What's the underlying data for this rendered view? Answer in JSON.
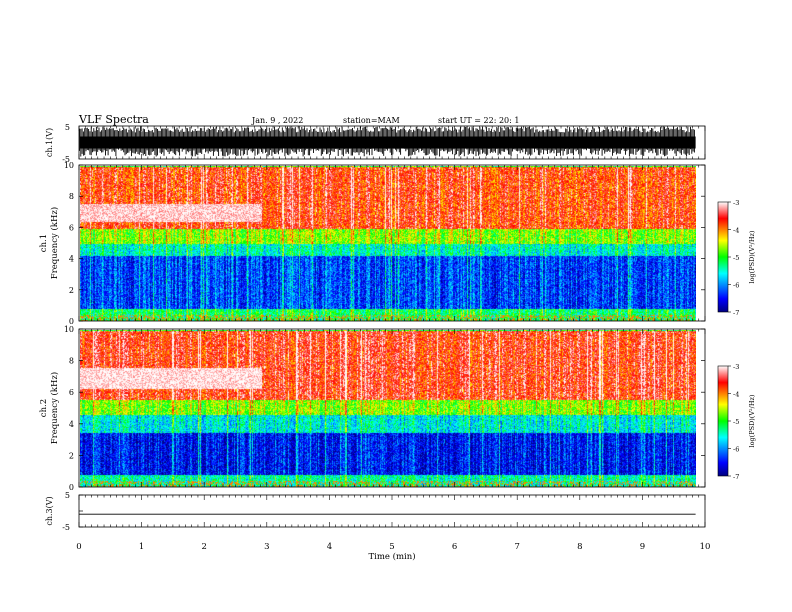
{
  "header": {
    "title": "VLF Spectra",
    "date": "Jan. 9 , 2022",
    "station": "station=MAM",
    "start": "start UT =  22: 20: 1"
  },
  "colorbar": {
    "label": "log(PSD)(V²/Hz)",
    "ticks": [
      "-3",
      "-4",
      "-5",
      "-6",
      "-7"
    ]
  },
  "chart_data": [
    {
      "type": "line",
      "name": "ch1-waveform",
      "ylabel": "ch.1(V)",
      "ylim": [
        -5,
        5
      ],
      "yticks": [
        "5",
        "-5"
      ],
      "xlim": [
        0,
        10
      ],
      "description_level": "dense black waveform spikes across full range"
    },
    {
      "type": "heatmap",
      "name": "ch1-spectrogram",
      "ylabel": "ch.1 Frequency (kHz)",
      "ylabel_lines": [
        "ch.1",
        "Frequency (kHz)"
      ],
      "ylim": [
        0,
        10
      ],
      "yticks": [
        "0",
        "2",
        "4",
        "6",
        "8",
        "10"
      ],
      "xlim": [
        0,
        9.85
      ],
      "clim": [
        -7,
        -3
      ],
      "colormap": [
        "#00007f",
        "#0000ff",
        "#00ffff",
        "#00ff00",
        "#ffff00",
        "#ff0000",
        "#ffffff"
      ],
      "band_structure_kHz": [
        {
          "from": 0,
          "to": 0.8,
          "level": -5.2
        },
        {
          "from": 0.8,
          "to": 4.2,
          "level": -6.3
        },
        {
          "from": 4.2,
          "to": 5.0,
          "level": -5.5
        },
        {
          "from": 5.0,
          "to": 6.0,
          "level": -4.7
        },
        {
          "from": 6.0,
          "to": 10,
          "level": -3.7
        }
      ],
      "feature": {
        "label": "",
        "x_range_min": [
          0,
          2.9
        ],
        "freq_kHz": [
          6.4,
          7.6
        ],
        "level": -3.1
      }
    },
    {
      "type": "heatmap",
      "name": "ch2-spectrogram",
      "ylabel": "ch.2 Frequency (kHz)",
      "ylabel_lines": [
        "ch.2",
        "Frequency (kHz)"
      ],
      "ylim": [
        0,
        10
      ],
      "yticks": [
        "0",
        "2",
        "4",
        "6",
        "8",
        "10"
      ],
      "xlim": [
        0,
        9.85
      ],
      "clim": [
        -7,
        -3
      ],
      "colormap": [
        "#00007f",
        "#0000ff",
        "#00ffff",
        "#00ff00",
        "#ffff00",
        "#ff0000",
        "#ffffff"
      ],
      "band_structure_kHz": [
        {
          "from": 0,
          "to": 0.8,
          "level": -5.4
        },
        {
          "from": 0.8,
          "to": 3.5,
          "level": -6.5
        },
        {
          "from": 3.5,
          "to": 4.6,
          "level": -5.6
        },
        {
          "from": 4.6,
          "to": 5.6,
          "level": -4.7
        },
        {
          "from": 5.6,
          "to": 10,
          "level": -3.6
        }
      ],
      "feature": {
        "label": "",
        "x_range_min": [
          0,
          2.9
        ],
        "freq_kHz": [
          6.3,
          7.6
        ],
        "level": -3.05
      }
    },
    {
      "type": "line",
      "name": "ch3-waveform",
      "ylabel": "ch.3(V)",
      "ylim": [
        -5,
        5
      ],
      "yticks": [
        "5",
        "0",
        "-5"
      ],
      "xlim": [
        0,
        10
      ],
      "x": [
        0,
        9.85
      ],
      "y": [
        -1,
        -1
      ]
    }
  ],
  "xaxis": {
    "label": "Time (min)",
    "ticks": [
      "0",
      "1",
      "2",
      "3",
      "4",
      "5",
      "6",
      "7",
      "8",
      "9",
      "10"
    ],
    "xlim": [
      0,
      10
    ]
  }
}
